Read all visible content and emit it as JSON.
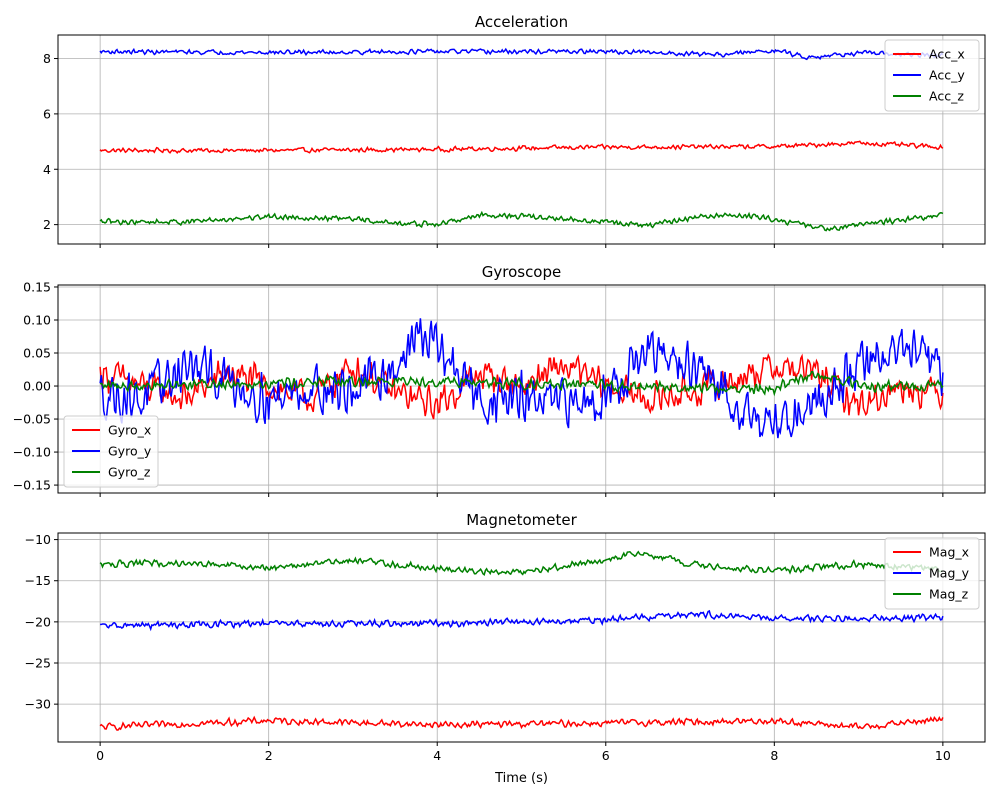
{
  "chart_data": [
    {
      "type": "line",
      "title": "Acceleration",
      "xlabel": "",
      "ylabel": "",
      "xlim": [
        -0.5,
        10.5
      ],
      "ylim": [
        1.3,
        8.85
      ],
      "xticks": [
        0,
        2,
        4,
        6,
        8,
        10
      ],
      "xticklabels_visible": false,
      "yticks": [
        2,
        4,
        6,
        8
      ],
      "grid": true,
      "legend": "upper-right",
      "series": [
        {
          "name": "Acc_x",
          "color": "#ff0000",
          "base": 4.7,
          "drift": [
            [
              0,
              4.68
            ],
            [
              2,
              4.68
            ],
            [
              4,
              4.72
            ],
            [
              6,
              4.8
            ],
            [
              8,
              4.82
            ],
            [
              9,
              4.95
            ],
            [
              10,
              4.8
            ]
          ],
          "noise": 0.1
        },
        {
          "name": "Acc_y",
          "color": "#0000ff",
          "base": 8.2,
          "drift": [
            [
              0,
              8.25
            ],
            [
              2,
              8.22
            ],
            [
              4,
              8.25
            ],
            [
              6,
              8.25
            ],
            [
              7.4,
              8.15
            ],
            [
              8,
              8.3
            ],
            [
              8.4,
              8.05
            ],
            [
              9,
              8.2
            ],
            [
              10,
              8.1
            ]
          ],
          "noise": 0.1
        },
        {
          "name": "Acc_z",
          "color": "#008000",
          "base": 2.1,
          "drift": [
            [
              0,
              2.1
            ],
            [
              1,
              2.1
            ],
            [
              2,
              2.3
            ],
            [
              3,
              2.2
            ],
            [
              3.5,
              2.05
            ],
            [
              4,
              2.0
            ],
            [
              4.5,
              2.35
            ],
            [
              5,
              2.3
            ],
            [
              6,
              2.1
            ],
            [
              6.5,
              1.95
            ],
            [
              7,
              2.25
            ],
            [
              7.5,
              2.35
            ],
            [
              8,
              2.2
            ],
            [
              8.6,
              1.85
            ],
            [
              9,
              2.0
            ],
            [
              10,
              2.35
            ]
          ],
          "noise": 0.12
        }
      ]
    },
    {
      "type": "line",
      "title": "Gyroscope",
      "xlabel": "",
      "ylabel": "",
      "xlim": [
        -0.5,
        10.5
      ],
      "ylim": [
        -0.162,
        0.153
      ],
      "xticks": [
        0,
        2,
        4,
        6,
        8,
        10
      ],
      "xticklabels_visible": false,
      "yticks": [
        -0.15,
        -0.1,
        -0.05,
        0.0,
        0.05,
        0.1,
        0.15
      ],
      "yticklabels": [
        "−0.15",
        "−0.10",
        "−0.05",
        "0.00",
        "0.05",
        "0.10",
        "0.15"
      ],
      "grid": true,
      "legend": "lower-left",
      "series": [
        {
          "name": "Gyro_x",
          "color": "#ff0000",
          "drift": [
            [
              0,
              0.02
            ],
            [
              0.5,
              0.0
            ],
            [
              1,
              -0.02
            ],
            [
              1.5,
              0.02
            ],
            [
              2,
              0.0
            ],
            [
              2.5,
              -0.02
            ],
            [
              3,
              0.03
            ],
            [
              3.5,
              -0.01
            ],
            [
              4,
              -0.03
            ],
            [
              4.5,
              0.02
            ],
            [
              5,
              0.0
            ],
            [
              5.5,
              0.03
            ],
            [
              6,
              0.0
            ],
            [
              6.5,
              -0.02
            ],
            [
              7,
              -0.01
            ],
            [
              7.5,
              0.01
            ],
            [
              8,
              0.03
            ],
            [
              8.5,
              0.02
            ],
            [
              9,
              -0.03
            ],
            [
              9.5,
              0.0
            ],
            [
              10,
              -0.01
            ]
          ],
          "noise": 0.03
        },
        {
          "name": "Gyro_y",
          "color": "#0000ff",
          "drift": [
            [
              0,
              -0.01
            ],
            [
              0.5,
              -0.02
            ],
            [
              1,
              0.03
            ],
            [
              1.5,
              0.01
            ],
            [
              2,
              -0.02
            ],
            [
              2.5,
              0.0
            ],
            [
              3,
              -0.01
            ],
            [
              3.5,
              0.03
            ],
            [
              3.8,
              0.08
            ],
            [
              4,
              0.06
            ],
            [
              4.5,
              -0.02
            ],
            [
              5,
              -0.02
            ],
            [
              5.5,
              -0.03
            ],
            [
              6,
              -0.01
            ],
            [
              6.5,
              0.05
            ],
            [
              7,
              0.03
            ],
            [
              7.5,
              -0.02
            ],
            [
              8,
              -0.06
            ],
            [
              8.5,
              -0.02
            ],
            [
              9,
              0.03
            ],
            [
              9.5,
              0.06
            ],
            [
              10,
              0.02
            ]
          ],
          "noise": 0.045
        },
        {
          "name": "Gyro_z",
          "color": "#008000",
          "drift": [
            [
              0,
              0.0
            ],
            [
              2,
              0.005
            ],
            [
              4,
              0.008
            ],
            [
              6,
              0.0
            ],
            [
              8,
              -0.005
            ],
            [
              8.5,
              0.02
            ],
            [
              9,
              0.0
            ],
            [
              10,
              0.0
            ]
          ],
          "noise": 0.01
        }
      ]
    },
    {
      "type": "line",
      "title": "Magnetometer",
      "xlabel": "Time (s)",
      "ylabel": "",
      "xlim": [
        -0.5,
        10.5
      ],
      "ylim": [
        -34.6,
        -9.2
      ],
      "xticks": [
        0,
        2,
        4,
        6,
        8,
        10
      ],
      "xticklabels_visible": true,
      "yticks": [
        -30,
        -25,
        -20,
        -15,
        -10
      ],
      "yticklabels": [
        "−30",
        "−25",
        "−20",
        "−15",
        "−10"
      ],
      "grid": true,
      "legend": "upper-right",
      "series": [
        {
          "name": "Mag_x",
          "color": "#ff0000",
          "drift": [
            [
              0,
              -32.8
            ],
            [
              2,
              -32.0
            ],
            [
              4,
              -32.5
            ],
            [
              6,
              -32.3
            ],
            [
              8,
              -32.0
            ],
            [
              9,
              -32.8
            ],
            [
              10,
              -31.8
            ]
          ],
          "noise": 0.5
        },
        {
          "name": "Mag_y",
          "color": "#0000ff",
          "drift": [
            [
              0,
              -20.5
            ],
            [
              2,
              -20.2
            ],
            [
              4,
              -20.2
            ],
            [
              6,
              -19.8
            ],
            [
              7,
              -19.0
            ],
            [
              8,
              -19.6
            ],
            [
              10,
              -19.5
            ]
          ],
          "noise": 0.5
        },
        {
          "name": "Mag_z",
          "color": "#008000",
          "drift": [
            [
              0,
              -13.0
            ],
            [
              1,
              -12.8
            ],
            [
              2,
              -13.5
            ],
            [
              3,
              -12.5
            ],
            [
              4,
              -13.5
            ],
            [
              5,
              -14.0
            ],
            [
              6,
              -12.5
            ],
            [
              6.4,
              -11.5
            ],
            [
              7,
              -13.0
            ],
            [
              8,
              -13.8
            ],
            [
              9,
              -13.0
            ],
            [
              10,
              -13.5
            ]
          ],
          "noise": 0.5
        }
      ]
    }
  ]
}
